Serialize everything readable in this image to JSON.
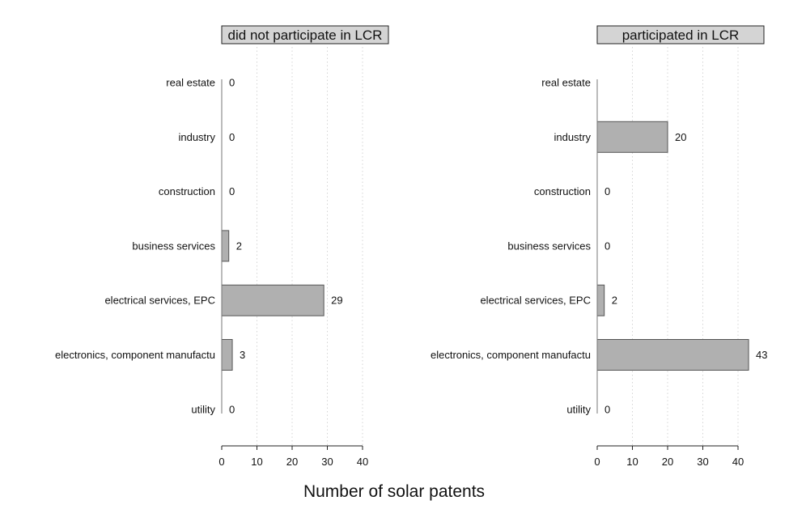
{
  "chart_data": {
    "type": "bar",
    "orientation": "horizontal",
    "xlabel": "Number of solar patents",
    "xlim": [
      0,
      40
    ],
    "xticks": [
      0,
      10,
      20,
      30,
      40
    ],
    "grid": "vertical dotted",
    "bar_color": "#b0b0b0",
    "bar_edge_color": "#555555",
    "categories": [
      "real estate",
      "industry",
      "construction",
      "business services",
      "electrical services, EPC",
      "electronics, component manufactu",
      "utility"
    ],
    "panels": [
      {
        "title": "did not participate in LCR",
        "values": [
          0,
          0,
          0,
          2,
          29,
          3,
          0
        ],
        "labels": [
          "0",
          "0",
          "0",
          "2",
          "29",
          "3",
          "0"
        ]
      },
      {
        "title": "participated in LCR",
        "values": [
          null,
          20,
          0,
          0,
          2,
          43,
          0
        ],
        "labels": [
          "",
          "20",
          "0",
          "0",
          "2",
          "43",
          "0"
        ]
      }
    ]
  }
}
